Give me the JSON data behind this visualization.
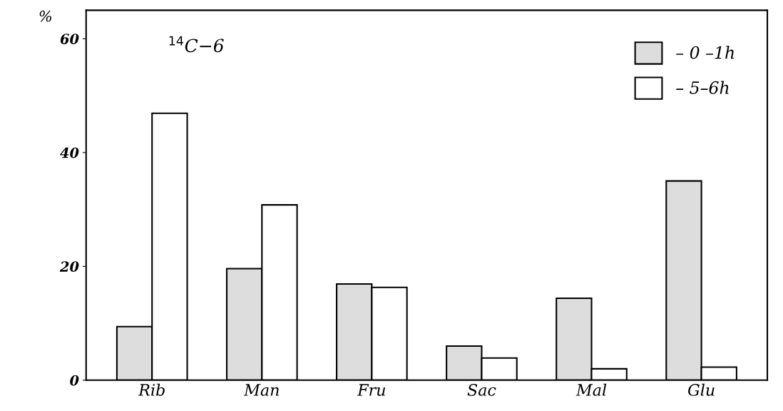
{
  "chart_data": {
    "type": "bar",
    "ylabel": "%",
    "categories": [
      "Rib",
      "Man",
      "Fru",
      "Sac",
      "Mal",
      "Glu"
    ],
    "series": [
      {
        "name": "– 0 –1h",
        "color": "#dddddd",
        "values": [
          9.4,
          19.6,
          16.9,
          6.0,
          14.4,
          35.0
        ]
      },
      {
        "name": "– 5–6h",
        "color": "#ffffff",
        "values": [
          46.9,
          30.8,
          16.3,
          3.9,
          2.0,
          2.3
        ]
      }
    ],
    "ylim": [
      0,
      65
    ],
    "yticks": [
      0,
      20,
      40,
      60
    ],
    "grid": false,
    "legend": "top right",
    "annotations": [
      "$^{14}$C−6"
    ]
  }
}
